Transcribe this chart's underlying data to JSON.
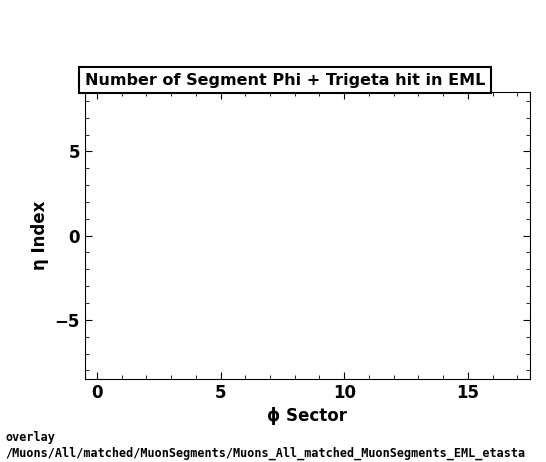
{
  "title": "Number of Segment Phi + Trigeta hit in EML",
  "xlabel": "ϕ Sector",
  "ylabel": "η Index",
  "xlim": [
    -0.5,
    17.5
  ],
  "ylim": [
    -8.5,
    8.5
  ],
  "xticks": [
    0,
    5,
    10,
    15
  ],
  "yticks": [
    -5,
    0,
    5
  ],
  "background_color": "#ffffff",
  "plot_bg_color": "#ffffff",
  "footer_line1": "overlay",
  "footer_line2": "/Muons/All/matched/MuonSegments/Muons_All_matched_MuonSegments_EML_etasta",
  "title_fontsize": 11.5,
  "axis_label_fontsize": 12,
  "tick_fontsize": 12,
  "footer_fontsize": 8.5
}
